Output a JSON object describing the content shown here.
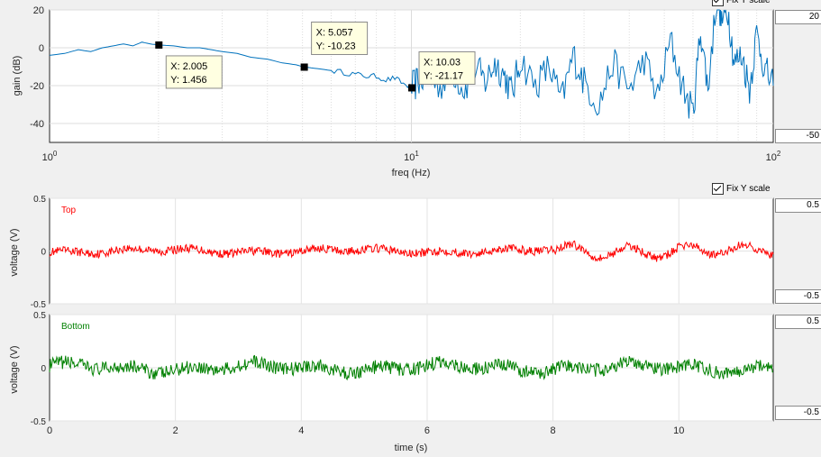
{
  "controls": {
    "fix_y_label": "Fix Y scale",
    "gain_ymax": "20",
    "gain_ymin": "-50",
    "top_ymax": "0.5",
    "top_ymin": "-0.5",
    "bottom_ymax": "0.5",
    "bottom_ymin": "-0.5"
  },
  "chart_data": [
    {
      "type": "line",
      "xscale": "log",
      "xlabel": "freq (Hz)",
      "ylabel": "gain (dB)",
      "xlim": [
        1,
        100
      ],
      "ylim": [
        -50,
        20
      ],
      "xticks": [
        "10^0",
        "10^1",
        "10^2"
      ],
      "yticks": [
        20,
        0,
        -20,
        -40
      ],
      "grid": true,
      "series": [
        {
          "color": "#0072bd",
          "x": [
            1.0,
            1.1,
            1.2,
            1.3,
            1.4,
            1.5,
            1.6,
            1.7,
            1.8,
            1.9,
            2.0,
            2.2,
            2.4,
            2.6,
            2.8,
            3.0,
            3.3,
            3.6,
            4.0,
            4.4,
            4.8,
            5.06,
            5.5,
            6.0,
            6.5,
            7.0,
            7.5,
            8.0,
            8.5,
            9.0,
            9.5,
            10.03,
            10.5,
            11,
            12,
            13,
            14,
            15,
            16,
            17,
            18,
            19,
            20,
            22,
            24,
            26,
            28,
            30,
            33,
            36,
            40,
            44,
            48,
            52,
            56,
            60,
            63,
            66,
            70,
            72,
            75,
            78,
            82,
            86,
            90,
            95,
            100
          ],
          "y": [
            -4,
            -3,
            -1,
            -2,
            0,
            1,
            2,
            1,
            3,
            2,
            1.5,
            1,
            0,
            0,
            -1,
            -2,
            -3,
            -5,
            -6,
            -8,
            -9,
            -10.2,
            -11,
            -12,
            -13,
            -14,
            -15,
            -15,
            -17,
            -16,
            -19,
            -21.2,
            -17,
            -15,
            -20,
            -12,
            -22,
            -10,
            -18,
            -8,
            -14,
            -24,
            -6,
            -20,
            -10,
            -28,
            -4,
            -18,
            -30,
            -8,
            -22,
            -6,
            -26,
            4,
            -20,
            -35,
            10,
            -22,
            30,
            14,
            20,
            -8,
            -4,
            -22,
            8,
            -12,
            -20
          ]
        }
      ],
      "annotations": [
        {
          "x": 2.005,
          "y": 1.456,
          "text_x": "X: 2.005",
          "text_y": "Y: 1.456"
        },
        {
          "x": 5.057,
          "y": -10.23,
          "text_x": "X: 5.057",
          "text_y": "Y: -10.23"
        },
        {
          "x": 10.03,
          "y": -21.17,
          "text_x": "X: 10.03",
          "text_y": "Y: -21.17"
        }
      ]
    },
    {
      "type": "line",
      "title": "Top",
      "xlabel": "",
      "ylabel": "voltage (V)",
      "xlim": [
        0,
        11.5
      ],
      "ylim": [
        -0.5,
        0.5
      ],
      "yticks": [
        0.5,
        0,
        -0.5
      ],
      "grid": true,
      "series": [
        {
          "name": "Top",
          "color": "#ff0000",
          "amplitude": 0.05
        }
      ]
    },
    {
      "type": "line",
      "title": "Bottom",
      "xlabel": "time (s)",
      "ylabel": "voltage (V)",
      "xlim": [
        0,
        11.5
      ],
      "ylim": [
        -0.5,
        0.5
      ],
      "xticks": [
        0,
        2,
        4,
        6,
        8,
        10
      ],
      "yticks": [
        0.5,
        0,
        -0.5
      ],
      "grid": true,
      "series": [
        {
          "name": "Bottom",
          "color": "#008000",
          "amplitude": 0.08
        }
      ]
    }
  ]
}
